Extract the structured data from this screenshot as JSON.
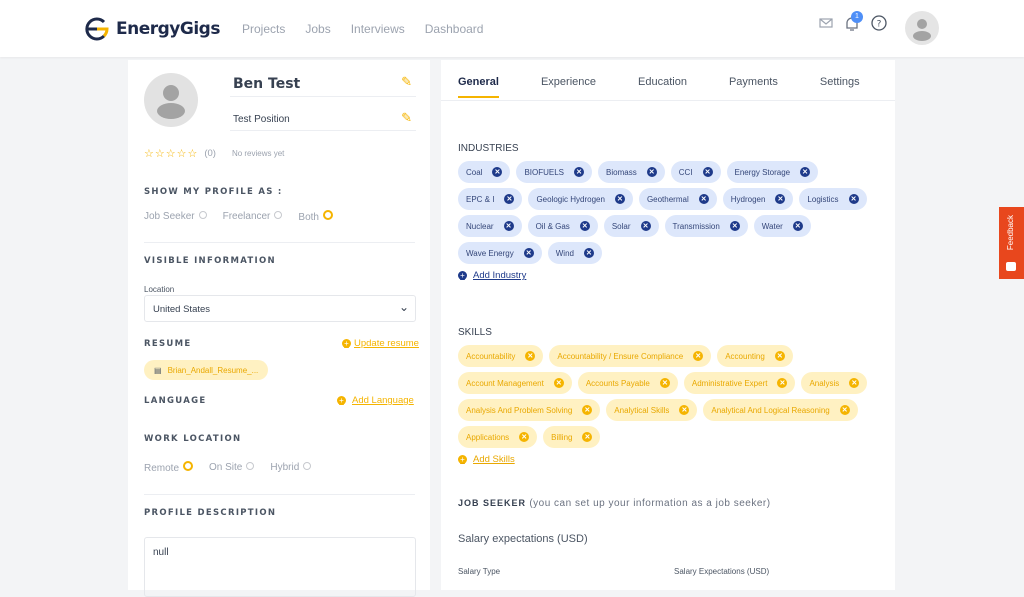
{
  "header": {
    "brand": "EnergyGigs",
    "nav": [
      "Projects",
      "Jobs",
      "Interviews",
      "Dashboard"
    ],
    "notification_count": "1",
    "icons": [
      "mail-icon",
      "bell-icon",
      "help-icon",
      "avatar"
    ]
  },
  "profile": {
    "name": "Ben Test",
    "position": "Test Position",
    "rating": "(0)",
    "reviews": "No reviews yet",
    "show_as_label": "SHOW MY PROFILE AS :",
    "show_as_options": [
      "Job Seeker",
      "Freelancer",
      "Both"
    ],
    "show_as_selected": "Both",
    "visible_info_label": "VISIBLE INFORMATION",
    "location_label": "Location",
    "location_value": "United States",
    "resume_label": "RESUME",
    "update_resume": "Update resume",
    "resume_file": "Brian_Andall_Resume_...",
    "language_label": "LANGUAGE",
    "add_language": "Add Language",
    "work_location_label": "WORK LOCATION",
    "work_location_options": [
      "Remote",
      "On Site",
      "Hybrid"
    ],
    "work_location_selected": "Remote",
    "description_label": "PROFILE DESCRIPTION",
    "description_value": "null"
  },
  "tabs": [
    "General",
    "Experience",
    "Education",
    "Payments",
    "Settings"
  ],
  "active_tab": "General",
  "industries": {
    "label": "INDUSTRIES",
    "items": [
      "Coal",
      "BIOFUELS",
      "Biomass",
      "CCI",
      "Energy Storage",
      "EPC & I",
      "Geologic Hydrogen",
      "Geothermal",
      "Hydrogen",
      "Logistics",
      "Nuclear",
      "Oil & Gas",
      "Solar",
      "Transmission",
      "Water",
      "Wave Energy",
      "Wind"
    ],
    "add": "Add Industry"
  },
  "skills": {
    "label": "SKILLS",
    "items": [
      "Accountability",
      "Accountability / Ensure Compliance",
      "Accounting",
      "Account Management",
      "Accounts Payable",
      "Administrative Expert",
      "Analysis",
      "Analysis And Problem Solving",
      "Analytical Skills",
      "Analytical And Logical Reasoning",
      "Applications",
      "Billing"
    ],
    "add": "Add Skills"
  },
  "job_seeker": {
    "title": "JOB SEEKER",
    "subtitle": "(you can set up your information as a job seeker)",
    "salary_heading": "Salary expectations (USD)",
    "salary_type_label": "Salary Type",
    "salary_expectations_label": "Salary Expectations (USD)"
  },
  "feedback": "Feedback",
  "colors": {
    "accent": "#f5b400",
    "navy": "#1e3a8a",
    "feedback": "#e8471d"
  }
}
